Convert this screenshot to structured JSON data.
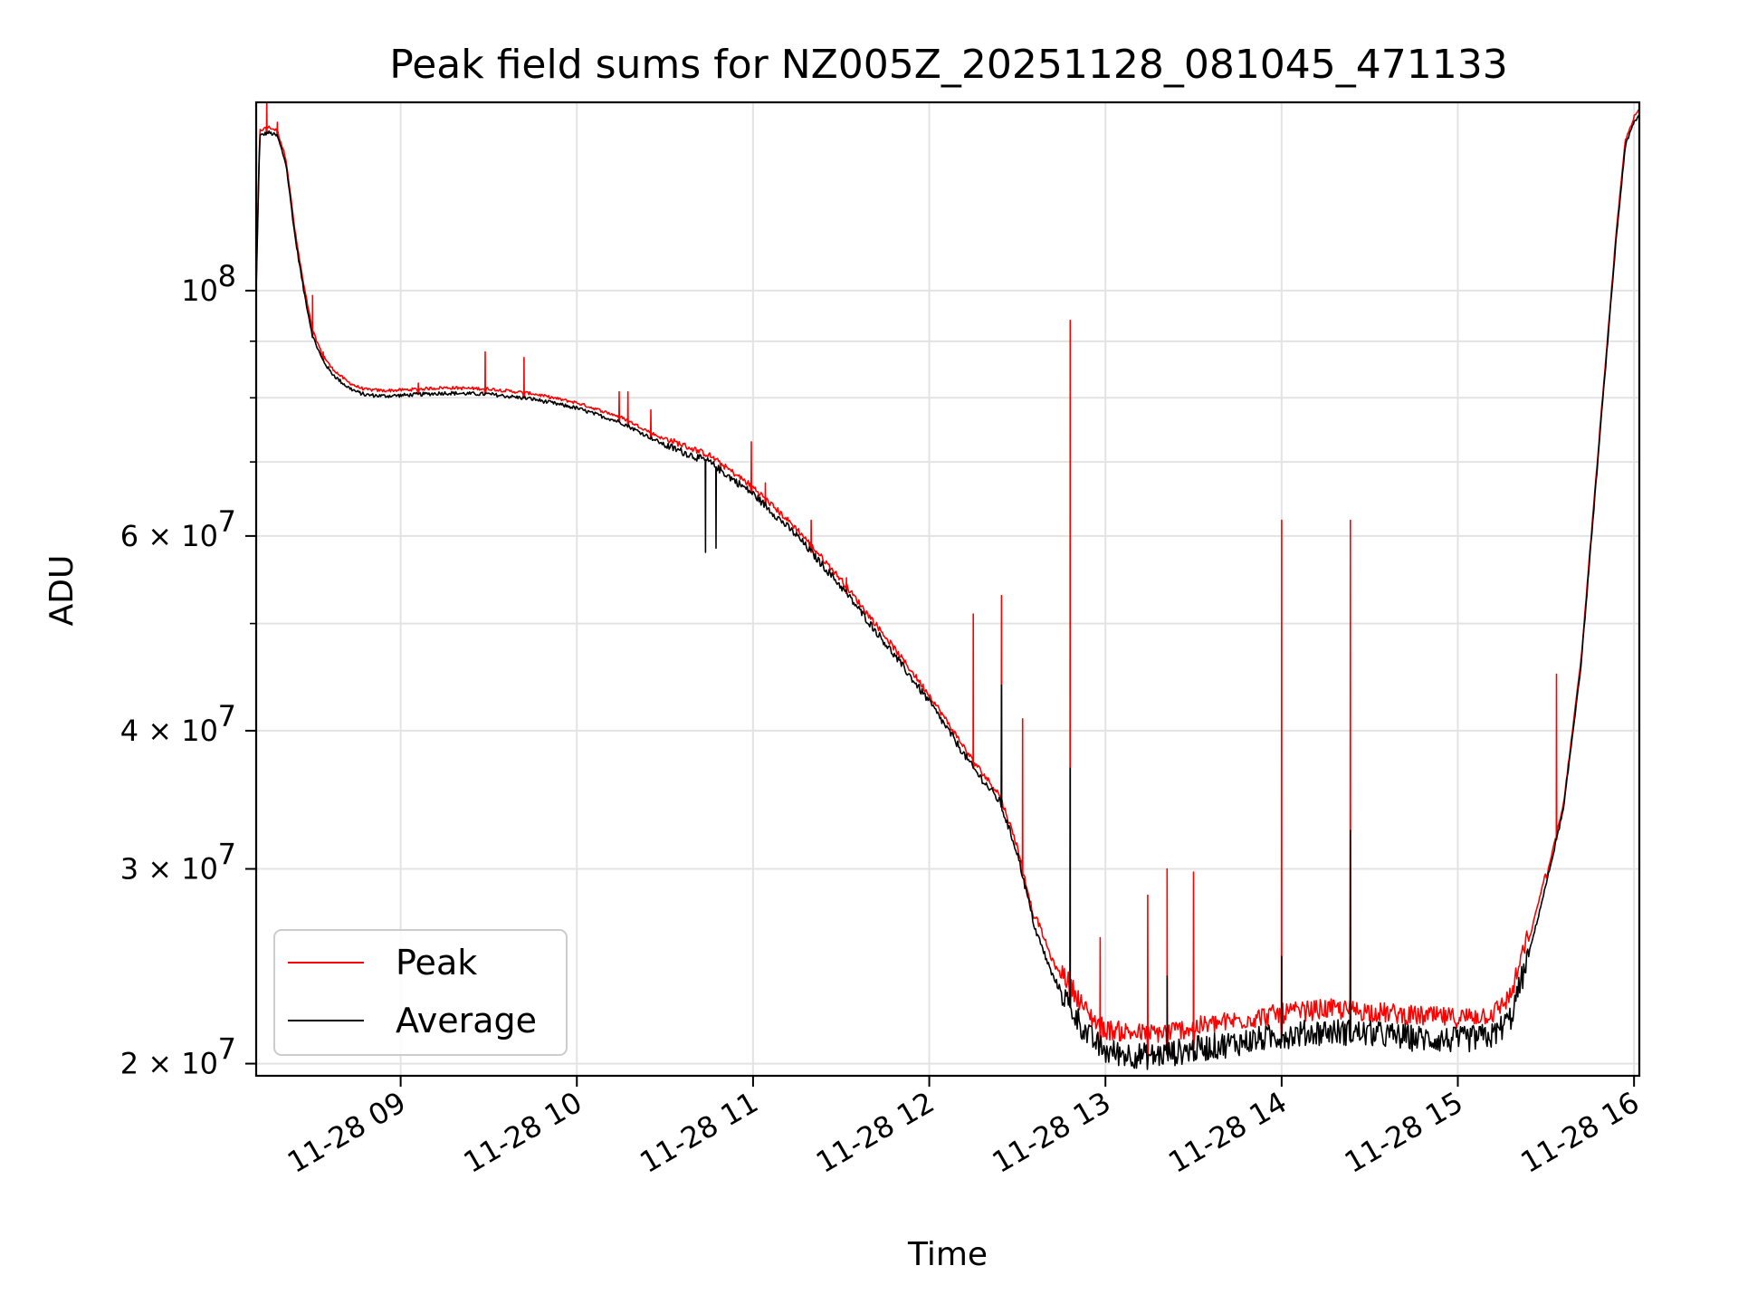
{
  "chart_data": {
    "type": "line",
    "title": "Peak field sums for NZ005Z_20251128_081045_471133",
    "xlabel": "Time",
    "ylabel": "ADU",
    "yscale": "log",
    "xlim": [
      8.18,
      16.03
    ],
    "ylim": [
      19500000,
      148000000
    ],
    "grid": true,
    "legend_position": "lower-left",
    "x_ticks": [
      {
        "value": 9,
        "label": "11-28 09"
      },
      {
        "value": 10,
        "label": "11-28 10"
      },
      {
        "value": 11,
        "label": "11-28 11"
      },
      {
        "value": 12,
        "label": "11-28 12"
      },
      {
        "value": 13,
        "label": "11-28 13"
      },
      {
        "value": 14,
        "label": "11-28 14"
      },
      {
        "value": 15,
        "label": "11-28 15"
      },
      {
        "value": 16,
        "label": "11-28 16"
      }
    ],
    "y_ticks_major": [
      {
        "value": 100000000,
        "label": "10",
        "sup": "8"
      },
      {
        "value": 60000000,
        "label": "6 × 10",
        "sup": "7"
      },
      {
        "value": 40000000,
        "label": "4 × 10",
        "sup": "7"
      },
      {
        "value": 30000000,
        "label": "3 × 10",
        "sup": "7"
      },
      {
        "value": 20000000,
        "label": "2 × 10",
        "sup": "7"
      }
    ],
    "y_ticks_minor": [
      90000000,
      80000000,
      70000000,
      50000000
    ],
    "series": [
      {
        "name": "Peak",
        "color": "#ff0000"
      },
      {
        "name": "Average",
        "color": "#000000"
      }
    ],
    "baseline": {
      "x": [
        8.18,
        8.2,
        8.25,
        8.3,
        8.35,
        8.4,
        8.45,
        8.5,
        8.55,
        8.6,
        8.65,
        8.7,
        8.75,
        8.8,
        8.9,
        9.0,
        9.25,
        9.5,
        9.75,
        10.0,
        10.25,
        10.5,
        10.75,
        11.0,
        11.25,
        11.5,
        11.75,
        12.0,
        12.25,
        12.4,
        12.5,
        12.6,
        12.7,
        12.8,
        12.9,
        13.0,
        13.25,
        13.5,
        13.75,
        14.0,
        14.25,
        14.5,
        14.75,
        15.0,
        15.2,
        15.3,
        15.4,
        15.5,
        15.6,
        15.7,
        15.8,
        15.9,
        15.95,
        16.0,
        16.03
      ],
      "values": [
        100000000,
        138000000,
        139000000,
        138000000,
        130000000,
        112000000,
        100000000,
        91000000,
        87000000,
        84500000,
        83000000,
        81800000,
        81000000,
        80500000,
        80300000,
        80400000,
        80800000,
        80600000,
        79800000,
        78300000,
        76000000,
        72500000,
        70000000,
        65500000,
        60000000,
        54000000,
        48000000,
        42500000,
        37000000,
        34500000,
        31000000,
        26500000,
        24000000,
        22500000,
        21200000,
        20500000,
        20300000,
        20600000,
        20900000,
        21200000,
        21400000,
        21300000,
        21100000,
        21000000,
        21200000,
        22000000,
        25000000,
        29000000,
        34000000,
        46000000,
        72000000,
        112000000,
        135000000,
        142000000,
        144000000
      ]
    },
    "peak_spikes": [
      {
        "x": 8.24,
        "value": 148000000
      },
      {
        "x": 8.3,
        "value": 142000000
      },
      {
        "x": 8.5,
        "value": 99000000
      },
      {
        "x": 8.56,
        "value": 88000000
      },
      {
        "x": 9.1,
        "value": 82500000
      },
      {
        "x": 9.48,
        "value": 88000000
      },
      {
        "x": 9.7,
        "value": 87000000
      },
      {
        "x": 10.24,
        "value": 81000000
      },
      {
        "x": 10.29,
        "value": 81000000
      },
      {
        "x": 10.42,
        "value": 78000000
      },
      {
        "x": 10.99,
        "value": 73000000
      },
      {
        "x": 11.07,
        "value": 67000000
      },
      {
        "x": 11.33,
        "value": 62000000
      },
      {
        "x": 11.53,
        "value": 55000000
      },
      {
        "x": 12.25,
        "value": 51000000
      },
      {
        "x": 12.41,
        "value": 53000000
      },
      {
        "x": 12.53,
        "value": 41000000
      },
      {
        "x": 12.8,
        "value": 94000000
      },
      {
        "x": 12.97,
        "value": 26000000
      },
      {
        "x": 13.24,
        "value": 28400000
      },
      {
        "x": 13.35,
        "value": 30000000
      },
      {
        "x": 13.5,
        "value": 29800000
      },
      {
        "x": 14.0,
        "value": 62000000
      },
      {
        "x": 14.39,
        "value": 62000000
      },
      {
        "x": 15.56,
        "value": 45000000
      }
    ],
    "average_spikes": [
      {
        "x": 12.41,
        "value": 44000000
      },
      {
        "x": 12.8,
        "value": 37000000
      },
      {
        "x": 13.35,
        "value": 24000000
      },
      {
        "x": 14.0,
        "value": 25000000
      },
      {
        "x": 14.39,
        "value": 32500000
      }
    ],
    "average_dips": [
      {
        "x": 10.73,
        "value": 58000000
      },
      {
        "x": 10.79,
        "value": 58500000
      }
    ]
  }
}
